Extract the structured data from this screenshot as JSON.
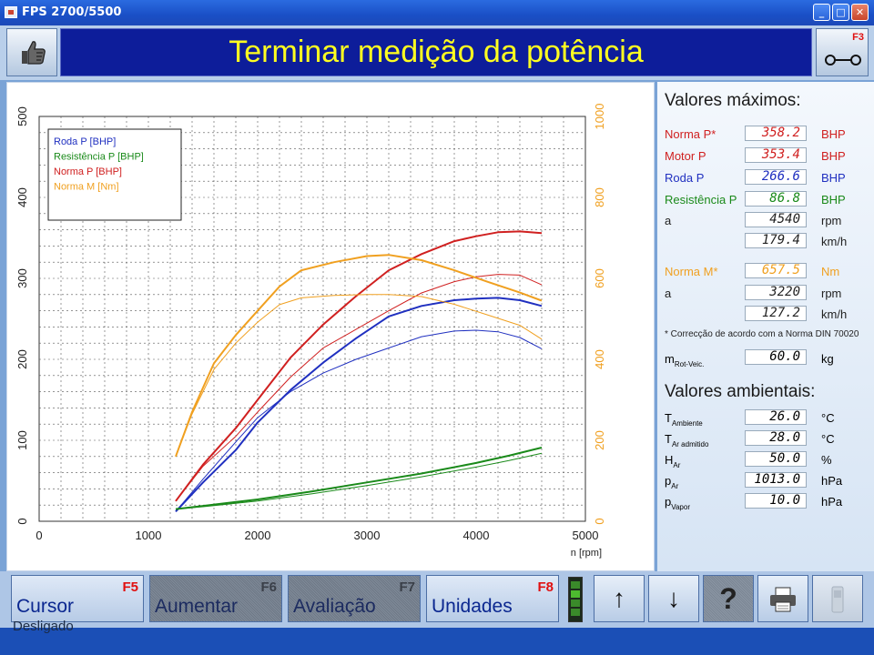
{
  "window": {
    "title": "FPS 2700/5500",
    "btn_min": "_",
    "btn_max": "□",
    "btn_close": "✕"
  },
  "header": {
    "title": "Terminar medição da potência",
    "right_key": "F3",
    "left_icon": "thumbs-up-icon",
    "right_icon": "switch-icon"
  },
  "chart_data": {
    "type": "line",
    "xlabel": "n [rpm]",
    "xlim": [
      0,
      5000
    ],
    "xticks": [
      0,
      1000,
      2000,
      3000,
      4000,
      5000
    ],
    "ylim": [
      0,
      500
    ],
    "yticks": [
      0,
      100,
      200,
      300,
      400,
      500
    ],
    "y2lim": [
      0,
      1000
    ],
    "y2ticks": [
      0,
      200,
      400,
      600,
      800,
      1000
    ],
    "grid": true,
    "legend_position": "top-left",
    "legend": [
      {
        "label": "Roda P [BHP]",
        "color": "#2030c0"
      },
      {
        "label": "Resistência P [BHP]",
        "color": "#1a8a1a"
      },
      {
        "label": "Norma P [BHP]",
        "color": "#d02020"
      },
      {
        "label": "Norma M [Nm]",
        "color": "#f0a020"
      }
    ],
    "series": [
      {
        "name": "Roda P [BHP]",
        "color": "#2030c0",
        "axis": "left",
        "width": 2,
        "x": [
          1250,
          1500,
          1800,
          2000,
          2300,
          2600,
          2900,
          3200,
          3500,
          3800,
          4000,
          4200,
          4400,
          4600
        ],
        "y": [
          12,
          48,
          88,
          122,
          162,
          196,
          226,
          253,
          266,
          273,
          275,
          276,
          273,
          266
        ]
      },
      {
        "name": "Roda P [BHP]",
        "color": "#2030c0",
        "axis": "left",
        "width": 1,
        "x": [
          1250,
          1500,
          1800,
          2000,
          2300,
          2600,
          2900,
          3200,
          3500,
          3800,
          4000,
          4200,
          4400,
          4600
        ],
        "y": [
          12,
          52,
          98,
          128,
          160,
          183,
          200,
          214,
          228,
          235,
          236,
          234,
          227,
          213
        ]
      },
      {
        "name": "Resistência P [BHP]",
        "color": "#1a8a1a",
        "axis": "left",
        "width": 2,
        "x": [
          1250,
          1500,
          2000,
          2500,
          3000,
          3500,
          4000,
          4300,
          4600
        ],
        "y": [
          15,
          19,
          27,
          37,
          48,
          59,
          72,
          81,
          91
        ]
      },
      {
        "name": "Resistência P [BHP]",
        "color": "#1a8a1a",
        "axis": "left",
        "width": 1,
        "x": [
          1250,
          1500,
          2000,
          2500,
          3000,
          3500,
          4000,
          4300,
          4600
        ],
        "y": [
          15,
          18,
          25,
          34,
          44,
          55,
          67,
          75,
          84
        ]
      },
      {
        "name": "Norma P [BHP]",
        "color": "#d02020",
        "axis": "left",
        "width": 2,
        "x": [
          1250,
          1500,
          1800,
          2000,
          2300,
          2600,
          2900,
          3200,
          3500,
          3800,
          4000,
          4200,
          4400,
          4600
        ],
        "y": [
          25,
          70,
          115,
          150,
          202,
          243,
          278,
          310,
          330,
          346,
          352,
          357,
          358,
          356
        ]
      },
      {
        "name": "Norma P [BHP]",
        "color": "#d02020",
        "axis": "left",
        "width": 1,
        "x": [
          1250,
          1500,
          1800,
          2000,
          2300,
          2600,
          2900,
          3200,
          3500,
          3800,
          4000,
          4200,
          4400,
          4600
        ],
        "y": [
          25,
          68,
          105,
          135,
          178,
          214,
          237,
          260,
          282,
          296,
          302,
          305,
          304,
          292
        ]
      },
      {
        "name": "Norma M [Nm]",
        "color": "#f0a020",
        "axis": "right",
        "width": 2,
        "x": [
          1250,
          1400,
          1600,
          1800,
          2000,
          2200,
          2400,
          2700,
          3000,
          3200,
          3500,
          3800,
          4100,
          4400,
          4600
        ],
        "y": [
          160,
          270,
          390,
          460,
          520,
          580,
          620,
          640,
          655,
          658,
          645,
          620,
          592,
          565,
          545
        ]
      },
      {
        "name": "Norma M [Nm]",
        "color": "#f0a020",
        "axis": "right",
        "width": 1,
        "x": [
          1250,
          1400,
          1600,
          1800,
          2000,
          2200,
          2400,
          2700,
          3000,
          3200,
          3500,
          3800,
          4100,
          4400,
          4600
        ],
        "y": [
          160,
          265,
          375,
          440,
          492,
          535,
          552,
          558,
          560,
          560,
          555,
          536,
          510,
          484,
          450
        ]
      }
    ]
  },
  "maximos": {
    "heading": "Valores máximos:",
    "rows": [
      {
        "label": "Norma P*",
        "value": "358.2",
        "unit": "BHP",
        "color": "#d02020"
      },
      {
        "label": "Motor P",
        "value": "353.4",
        "unit": "BHP",
        "color": "#d02020"
      },
      {
        "label": "Roda P",
        "value": "266.6",
        "unit": "BHP",
        "color": "#2030c0"
      },
      {
        "label": "Resistência P",
        "value": "86.8",
        "unit": "BHP",
        "color": "#1a8a1a"
      },
      {
        "label": "a",
        "value": "4540",
        "unit": "rpm",
        "color": "#222222"
      },
      {
        "label": "",
        "value": "179.4",
        "unit": "km/h",
        "color": "#222222"
      },
      {
        "label": "Norma M*",
        "value": "657.5",
        "unit": "Nm",
        "color": "#f0a020"
      },
      {
        "label": "a",
        "value": "3220",
        "unit": "rpm",
        "color": "#222222"
      },
      {
        "label": "",
        "value": "127.2",
        "unit": "km/h",
        "color": "#222222"
      }
    ],
    "note": "* Correcção de acordo com a Norma DIN 70020",
    "mass": {
      "label": "m",
      "sub": "Rot-Veic.",
      "value": "60.0",
      "unit": "kg"
    }
  },
  "ambientais": {
    "heading": "Valores ambientais:",
    "rows": [
      {
        "label": "T",
        "sub": "Ambiente",
        "value": "26.0",
        "unit": "°C"
      },
      {
        "label": "T",
        "sub": "Ar admitido",
        "value": "28.0",
        "unit": "°C"
      },
      {
        "label": "H",
        "sub": "Ar",
        "value": "50.0",
        "unit": "%"
      },
      {
        "label": "p",
        "sub": "Ar",
        "value": "1013.0",
        "unit": "hPa"
      },
      {
        "label": "p",
        "sub": "Vapor",
        "value": "10.0",
        "unit": "hPa"
      }
    ]
  },
  "footer": {
    "buttons": [
      {
        "label": "Cursor",
        "key": "F5",
        "enabled": true
      },
      {
        "label": "Aumentar",
        "key": "F6",
        "enabled": false
      },
      {
        "label": "Avaliação",
        "key": "F7",
        "enabled": false
      },
      {
        "label": "Unidades",
        "key": "F8",
        "enabled": true
      }
    ],
    "icons": [
      {
        "name": "arrow-up-icon",
        "glyph": "↑"
      },
      {
        "name": "arrow-down-icon",
        "glyph": "↓"
      },
      {
        "name": "help-icon",
        "glyph": "?"
      },
      {
        "name": "printer-icon",
        "glyph": ""
      },
      {
        "name": "disabled-device-icon",
        "glyph": ""
      }
    ],
    "ghost_text": "Desligado"
  }
}
